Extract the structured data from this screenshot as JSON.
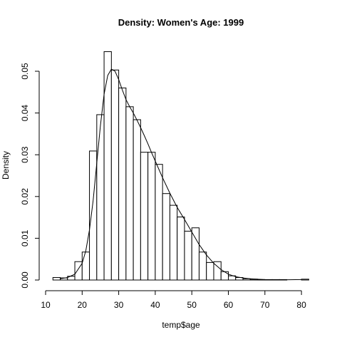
{
  "chart_data": {
    "type": "bar",
    "title": "Density: Women's Age:  1999",
    "xlabel": "temp$age",
    "ylabel": "Density",
    "xlim": [
      10,
      85
    ],
    "ylim": [
      0,
      0.055
    ],
    "xticks": [
      10,
      20,
      30,
      40,
      50,
      60,
      70,
      80
    ],
    "yticks": [
      0.0,
      0.01,
      0.02,
      0.03,
      0.04,
      0.05
    ],
    "ytick_labels": [
      "0.00",
      "0.01",
      "0.02",
      "0.03",
      "0.04",
      "0.05"
    ],
    "bin_width": 2,
    "bins": [
      {
        "start": 12,
        "end": 14,
        "value": 0.0006
      },
      {
        "start": 14,
        "end": 16,
        "value": 0.0005
      },
      {
        "start": 16,
        "end": 18,
        "value": 0.0009
      },
      {
        "start": 18,
        "end": 20,
        "value": 0.0044
      },
      {
        "start": 20,
        "end": 22,
        "value": 0.0067
      },
      {
        "start": 22,
        "end": 24,
        "value": 0.0309
      },
      {
        "start": 24,
        "end": 26,
        "value": 0.0396
      },
      {
        "start": 26,
        "end": 28,
        "value": 0.0547
      },
      {
        "start": 28,
        "end": 30,
        "value": 0.0503
      },
      {
        "start": 30,
        "end": 32,
        "value": 0.046
      },
      {
        "start": 32,
        "end": 34,
        "value": 0.0415
      },
      {
        "start": 34,
        "end": 36,
        "value": 0.0384
      },
      {
        "start": 36,
        "end": 38,
        "value": 0.0306
      },
      {
        "start": 38,
        "end": 40,
        "value": 0.0306
      },
      {
        "start": 40,
        "end": 42,
        "value": 0.0277
      },
      {
        "start": 42,
        "end": 44,
        "value": 0.0207
      },
      {
        "start": 44,
        "end": 46,
        "value": 0.0179
      },
      {
        "start": 46,
        "end": 48,
        "value": 0.0151
      },
      {
        "start": 48,
        "end": 50,
        "value": 0.0117
      },
      {
        "start": 50,
        "end": 52,
        "value": 0.0125
      },
      {
        "start": 52,
        "end": 54,
        "value": 0.0067
      },
      {
        "start": 54,
        "end": 56,
        "value": 0.0042
      },
      {
        "start": 56,
        "end": 58,
        "value": 0.0044
      },
      {
        "start": 58,
        "end": 60,
        "value": 0.002
      },
      {
        "start": 60,
        "end": 62,
        "value": 0.001
      },
      {
        "start": 62,
        "end": 64,
        "value": 0.0006
      },
      {
        "start": 64,
        "end": 66,
        "value": 0.0003
      },
      {
        "start": 66,
        "end": 68,
        "value": 0.0002
      },
      {
        "start": 68,
        "end": 70,
        "value": 0.0001
      },
      {
        "start": 70,
        "end": 72,
        "value": 0.0001
      },
      {
        "start": 72,
        "end": 74,
        "value": 0.0001
      },
      {
        "start": 74,
        "end": 76,
        "value": 0.0001
      },
      {
        "start": 80,
        "end": 82,
        "value": 0.0002
      }
    ],
    "density_curve": {
      "x": [
        14,
        16,
        18,
        20,
        21,
        22,
        23,
        24,
        25,
        26,
        27,
        28,
        29,
        30,
        31,
        32,
        33,
        34,
        35,
        36,
        37,
        38,
        39,
        40,
        42,
        44,
        46,
        48,
        50,
        52,
        54,
        56,
        58,
        60,
        62,
        64,
        66,
        68,
        70,
        75,
        80
      ],
      "y": [
        0.0003,
        0.0006,
        0.0014,
        0.004,
        0.007,
        0.012,
        0.019,
        0.028,
        0.037,
        0.0445,
        0.049,
        0.0505,
        0.05,
        0.048,
        0.0455,
        0.0432,
        0.0415,
        0.04,
        0.0383,
        0.0365,
        0.0346,
        0.0326,
        0.0305,
        0.0285,
        0.0245,
        0.0208,
        0.0174,
        0.0145,
        0.0115,
        0.0085,
        0.006,
        0.004,
        0.0025,
        0.0014,
        0.0008,
        0.0005,
        0.0003,
        0.0002,
        0.0001,
        5e-05,
        0.0001
      ]
    }
  }
}
